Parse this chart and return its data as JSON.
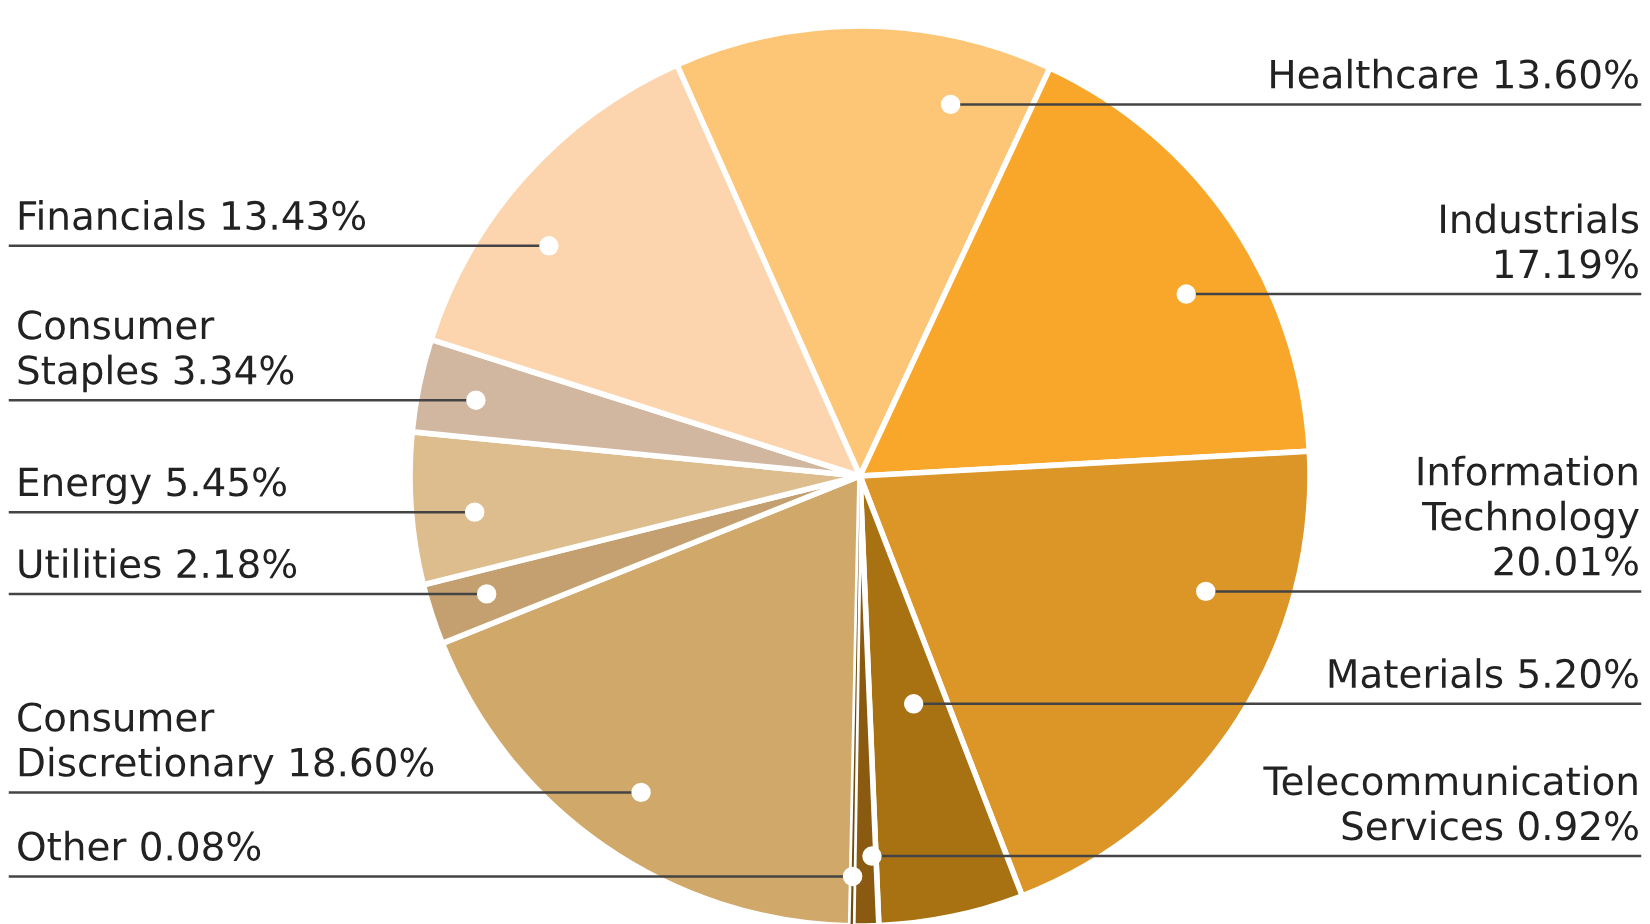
{
  "chart_data": {
    "type": "pie",
    "categories": [
      "Healthcare",
      "Industrials",
      "Information\nTechnology",
      "Materials",
      "Telecommunication\nServices",
      "Other",
      "Consumer\nDiscretionary",
      "Utilities",
      "Energy",
      "Consumer\nStaples",
      "Financials"
    ],
    "values": [
      13.6,
      17.19,
      20.01,
      5.2,
      0.92,
      0.08,
      18.6,
      2.18,
      5.45,
      3.34,
      13.43
    ],
    "value_labels": [
      "13.60%",
      "17.19%",
      "20.01%",
      "5.20%",
      "0.92%",
      "0.08%",
      "18.60%",
      "2.18%",
      "5.45%",
      "3.34%",
      "13.43%"
    ],
    "colors": [
      "#fdc676",
      "#f9a72b",
      "#dc9527",
      "#a87213",
      "#8a5a10",
      "#6e4a0e",
      "#cfa86a",
      "#c4a070",
      "#ddbd8e",
      "#d1b6a0",
      "#fcd5ae"
    ]
  }
}
